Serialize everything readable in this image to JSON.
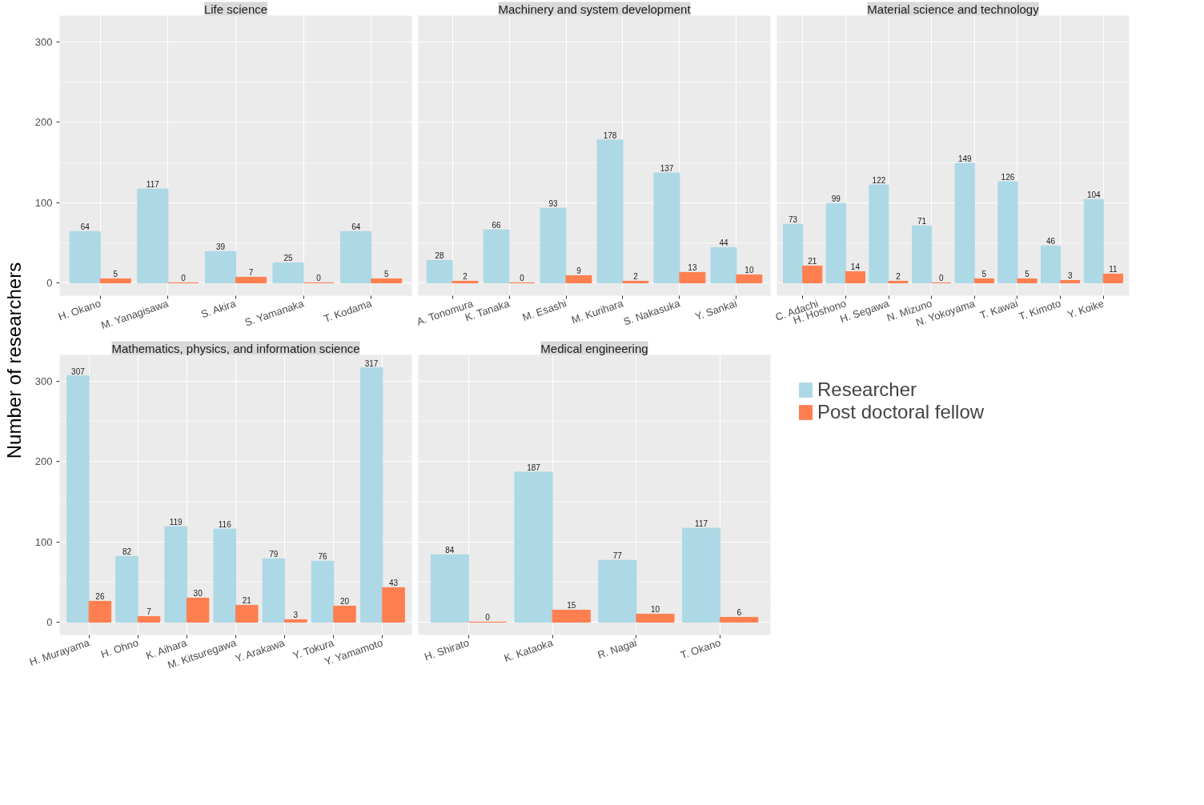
{
  "chart_data": [
    {
      "type": "bar",
      "title": "Life science",
      "ylabel": "Number of researchers",
      "categories": [
        "H. Okano",
        "M. Yanagisawa",
        "S. Akira",
        "S. Yamanaka",
        "T. Kodama"
      ],
      "series": [
        {
          "name": "Researcher",
          "color": "#add8e6",
          "values": [
            64,
            117,
            39,
            25,
            64
          ]
        },
        {
          "name": "Post doctoral fellow",
          "color": "#ff7f50",
          "values": [
            5,
            0,
            7,
            0,
            5
          ]
        }
      ],
      "ylim": [
        -16,
        333
      ],
      "yticks": [
        0,
        100,
        200,
        300
      ],
      "data_labels": true,
      "grid": true,
      "legend": "right"
    },
    {
      "type": "bar",
      "title": "Machinery and system development",
      "categories": [
        "A. Tonomura",
        "K. Tanaka",
        "M. Esashi",
        "M. Kurihara",
        "S. Nakasuka",
        "Y. Sankai"
      ],
      "series": [
        {
          "color": "#add8e6",
          "values": [
            28,
            66,
            93,
            178,
            137,
            44
          ]
        },
        {
          "color": "#ff7f50",
          "values": [
            2,
            0,
            9,
            2,
            13,
            10
          ]
        }
      ],
      "ylim": [
        -16,
        333
      ],
      "yticks": [
        0,
        100,
        200,
        300
      ],
      "data_labels": true,
      "grid": true,
      "tick_labels": "x"
    },
    {
      "type": "bar",
      "title": "Material science and technology",
      "categories": [
        "C. Adachi",
        "H. Hoshono",
        "H. Segawa",
        "N. Mizuno",
        "N. Yokoyama",
        "T. Kawai",
        "T. Kimoto",
        "Y. Koike"
      ],
      "series": [
        {
          "color": "#add8e6",
          "values": [
            73,
            99,
            122,
            71,
            149,
            126,
            46,
            104
          ]
        },
        {
          "color": "#ff7f50",
          "values": [
            21,
            14,
            2,
            0,
            5,
            5,
            3,
            11
          ]
        }
      ],
      "ylim": [
        -16,
        333
      ],
      "yticks": [
        0,
        100,
        200,
        300
      ],
      "data_labels": true,
      "grid": true,
      "tick_labels": "x"
    },
    {
      "type": "bar",
      "title": "Mathematics, physics, and information science",
      "categories": [
        "H. Murayama",
        "H. Ohno",
        "K. Aihara",
        "M. Kitsuregawa",
        "Y. Arakawa",
        "Y. Tokura",
        "Y. Yamamoto"
      ],
      "series": [
        {
          "color": "#add8e6",
          "values": [
            307,
            82,
            119,
            116,
            79,
            76,
            317
          ]
        },
        {
          "color": "#ff7f50",
          "values": [
            26,
            7,
            30,
            21,
            3,
            20,
            43
          ]
        }
      ],
      "ylim": [
        -16,
        333
      ],
      "yticks": [
        0,
        100,
        200,
        300
      ],
      "data_labels": true,
      "grid": true
    },
    {
      "type": "bar",
      "title": "Medical engineering",
      "categories": [
        "H. Shirato",
        "K. Kataoka",
        "R. Nagai",
        "T. Okano"
      ],
      "series": [
        {
          "color": "#add8e6",
          "values": [
            84,
            187,
            77,
            117
          ]
        },
        {
          "color": "#ff7f50",
          "values": [
            0,
            15,
            10,
            6
          ]
        }
      ],
      "ylim": [
        -16,
        333
      ],
      "yticks": [
        0,
        100,
        200,
        300
      ],
      "data_labels": true,
      "grid": true,
      "tick_labels": "x"
    }
  ]
}
